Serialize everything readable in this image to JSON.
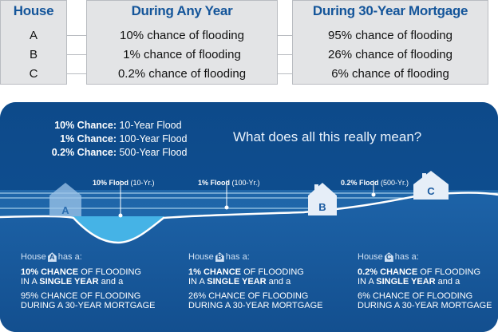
{
  "table": {
    "house_header": "House",
    "any_year_header": "During Any Year",
    "mortgage_header": "During 30-Year Mortgage",
    "rows": [
      {
        "house": "A",
        "any_year": "10% chance of flooding",
        "mortgage": "95% chance of flooding"
      },
      {
        "house": "B",
        "any_year": "1% chance of flooding",
        "mortgage": "26% chance of flooding"
      },
      {
        "house": "C",
        "any_year": "0.2% chance of flooding",
        "mortgage": "6% chance of flooding"
      }
    ]
  },
  "legend": [
    {
      "key": "10% Chance:",
      "value": "10-Year Flood"
    },
    {
      "key": "1% Chance:",
      "value": "100-Year Flood"
    },
    {
      "key": "0.2% Chance:",
      "value": "500-Year Flood"
    }
  ],
  "question": "What does all this really mean?",
  "flood_labels": [
    {
      "bold": "10% Flood",
      "rest": " (10-Yr.)"
    },
    {
      "bold": "1% Flood",
      "rest": " (100-Yr.)"
    },
    {
      "bold": "0.2% Flood",
      "rest": " (500-Yr.)"
    }
  ],
  "houses": [
    "A",
    "B",
    "C"
  ],
  "explanations": [
    {
      "house": "A",
      "prefix": "House",
      "suffix": "has a:",
      "line1_bold": "10% CHANCE",
      "line1_rest": " OF FLOODING",
      "line2_pre": "IN A ",
      "line2_bold": "SINGLE YEAR",
      "line2_post": " and a",
      "line3": "95% CHANCE OF FLOODING",
      "line4": "DURING A 30-YEAR MORTGAGE"
    },
    {
      "house": "B",
      "prefix": "House",
      "suffix": "has a:",
      "line1_bold": "1% CHANCE",
      "line1_rest": " OF FLOODING",
      "line2_pre": "IN A ",
      "line2_bold": "SINGLE YEAR",
      "line2_post": " and a",
      "line3": "26% CHANCE OF FLOODING",
      "line4": "DURING A 30-YEAR MORTGAGE"
    },
    {
      "house": "C",
      "prefix": "House",
      "suffix": "has a:",
      "line1_bold": "0.2% CHANCE",
      "line1_rest": " OF FLOODING",
      "line2_pre": "IN A ",
      "line2_bold": "SINGLE YEAR",
      "line2_post": " and a",
      "line3": "6% CHANCE OF FLOODING",
      "line4": "DURING A 30-YEAR MORTGAGE"
    }
  ],
  "colors": {
    "panel_bg": "#0f4c8b",
    "water_light": "#3fa9df",
    "land": "#ffffff",
    "header_text": "#14559a",
    "table_bg": "#e3e4e6"
  }
}
